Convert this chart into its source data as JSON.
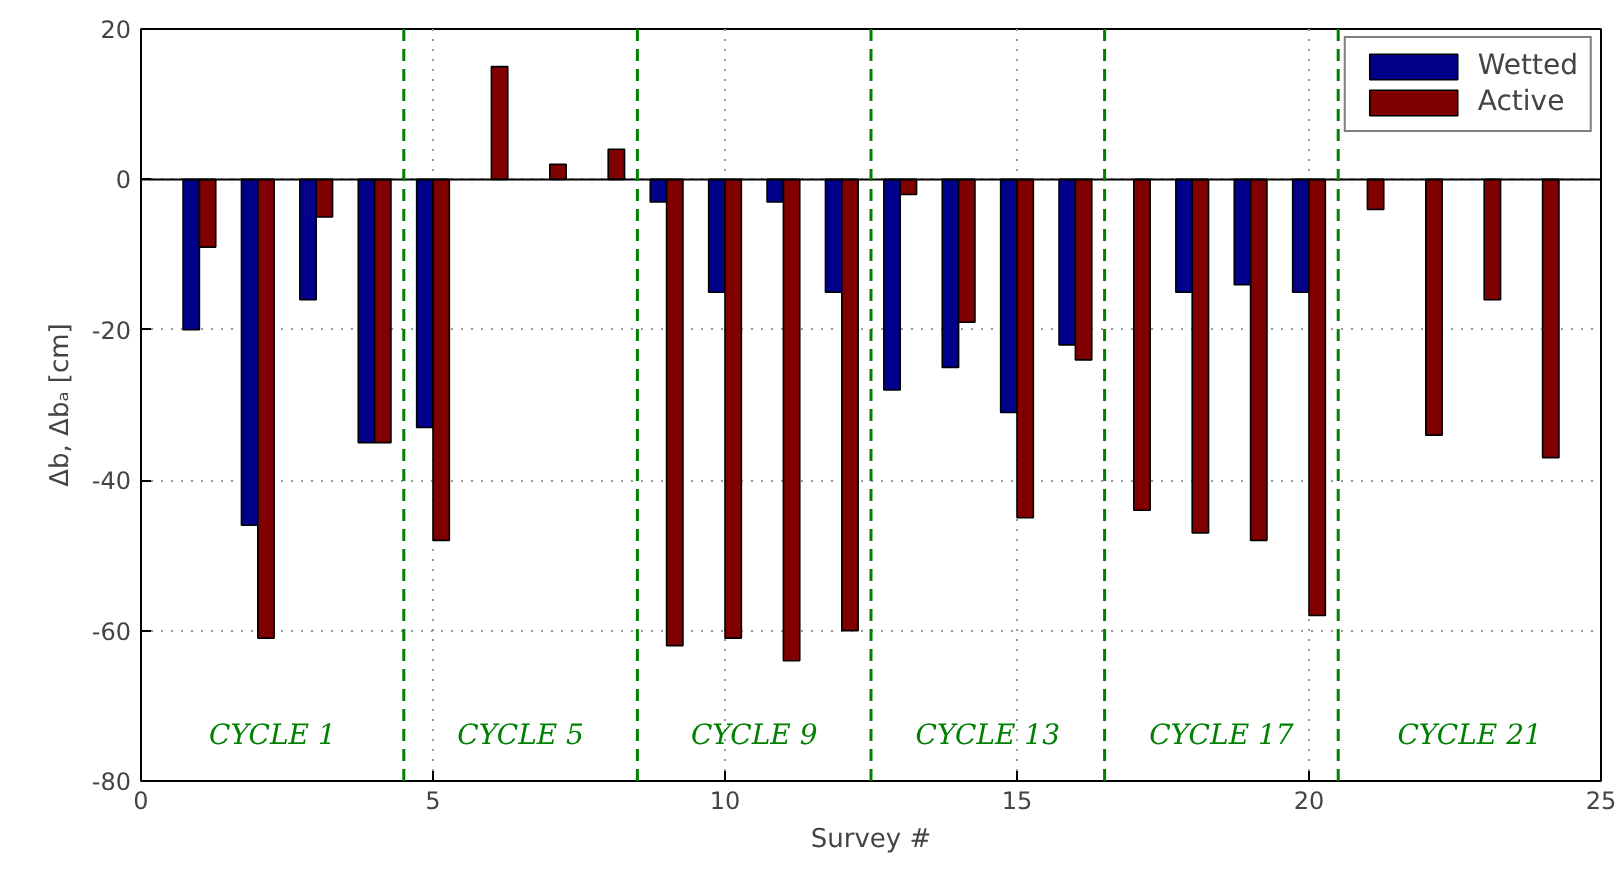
{
  "chart_data": {
    "type": "bar",
    "xlabel": "Survey #",
    "ylabel": "Δb, Δbₐ [cm]",
    "x": [
      1,
      2,
      3,
      4,
      5,
      6,
      7,
      8,
      9,
      10,
      11,
      12,
      13,
      14,
      15,
      16,
      17,
      18,
      19,
      20,
      21,
      22,
      23,
      24
    ],
    "series": [
      {
        "name": "Wetted",
        "color": "#00008b",
        "values": [
          -20,
          -46,
          -16,
          -35,
          -33,
          null,
          null,
          null,
          -3,
          -15,
          -3,
          -15,
          -28,
          -25,
          -31,
          -22,
          null,
          -15,
          -14,
          -15,
          null,
          null,
          null,
          null
        ]
      },
      {
        "name": "Active",
        "color": "#800000",
        "values": [
          -9,
          -61,
          -5,
          -35,
          -48,
          15,
          2,
          4,
          -62,
          -61,
          -64,
          -60,
          -2,
          -19,
          -45,
          -24,
          -44,
          -47,
          -48,
          -58,
          -4,
          -34,
          -16,
          -37
        ]
      }
    ],
    "xlim": [
      0,
      25
    ],
    "xticks": [
      0,
      5,
      10,
      15,
      20,
      25
    ],
    "ylim": [
      -80,
      20
    ],
    "yticks": [
      -80,
      -60,
      -40,
      -20,
      0,
      20
    ],
    "grid": true,
    "legend": "top right",
    "ref_lines": [
      {
        "axis": "x",
        "value": 4.5,
        "color": "#008000",
        "line_style": "dashed"
      },
      {
        "axis": "x",
        "value": 8.5,
        "color": "#008000",
        "line_style": "dashed"
      },
      {
        "axis": "x",
        "value": 12.5,
        "color": "#008000",
        "line_style": "dashed"
      },
      {
        "axis": "x",
        "value": 16.5,
        "color": "#008000",
        "line_style": "dashed"
      },
      {
        "axis": "x",
        "value": 20.5,
        "color": "#008000",
        "line_style": "dashed"
      }
    ],
    "annotations": [
      "CYCLE 1",
      "CYCLE 5",
      "CYCLE 9",
      "CYCLE 13",
      "CYCLE 17",
      "CYCLE 21"
    ]
  }
}
